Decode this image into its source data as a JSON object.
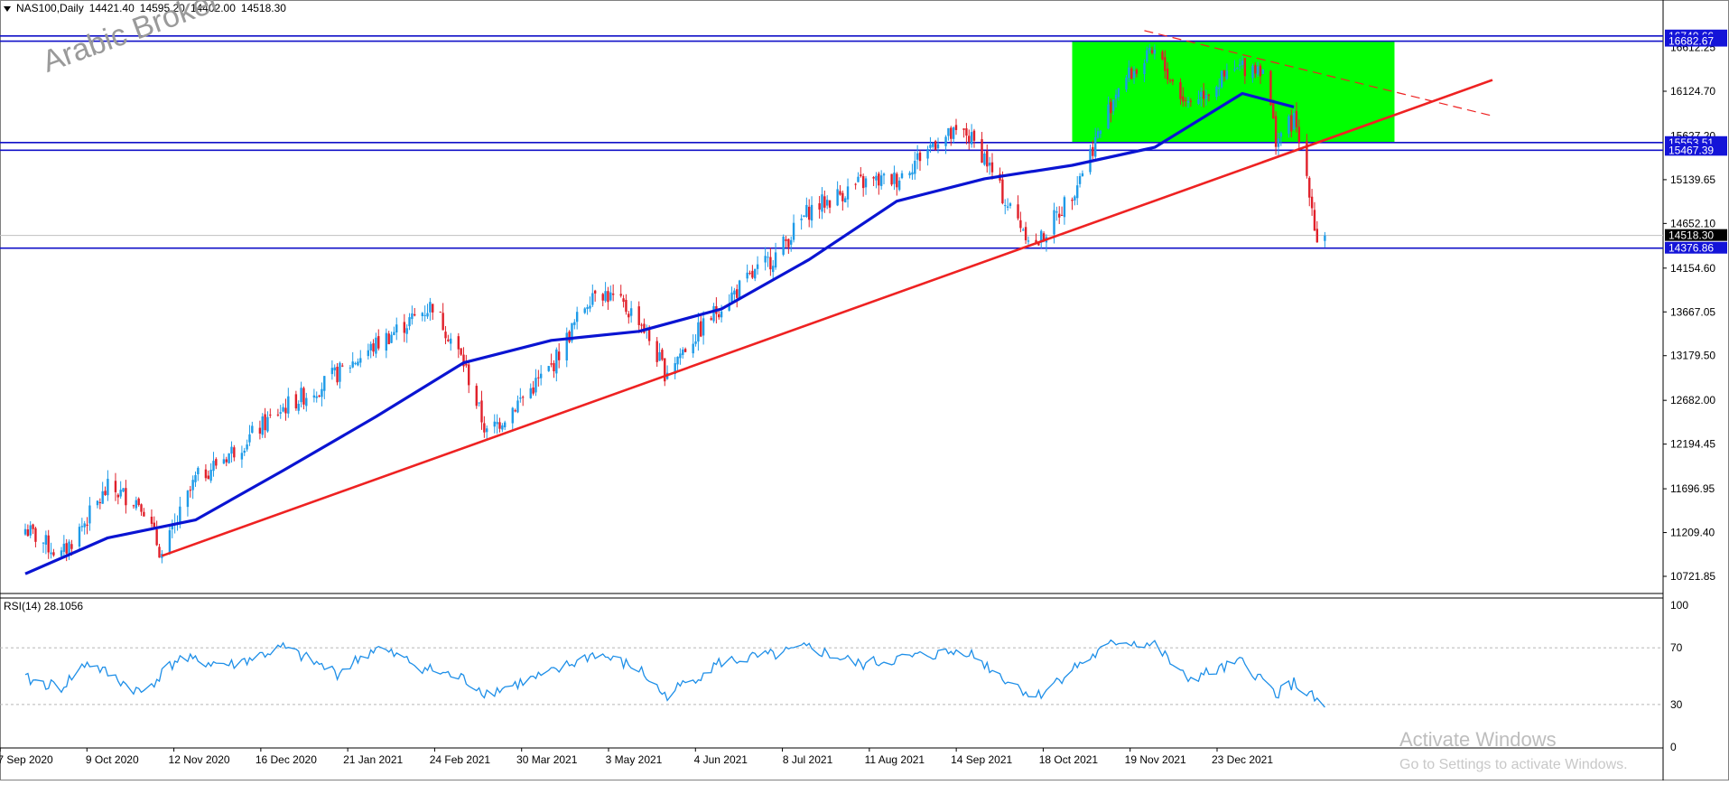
{
  "header": {
    "symbol": "NAS100,Daily",
    "open": "14421.40",
    "high": "14595.20",
    "low": "14402.00",
    "close": "14518.30"
  },
  "watermark": "Arabic Broker",
  "rsi_header": "RSI(14) 28.1056",
  "windows_notice": {
    "title": "Activate Windows",
    "subtitle": "Go to Settings to activate Windows."
  },
  "colors": {
    "bull_candle": "#1e9be8",
    "bear_candle": "#e0202a",
    "moving_average": "#0a14d2",
    "trendline": "#ee2222",
    "horizontal_levels": "#1010c8",
    "range_box": "#00ff00",
    "rsi_line": "#1e8fe8",
    "price_label_bg": "#1414d8",
    "current_price_label_bg": "#000000"
  },
  "chart_data": {
    "type": "candlestick",
    "symbol": "NAS100",
    "timeframe": "Daily",
    "price_axis_ticks": [
      "16124.70",
      "15139.65",
      "14652.10",
      "14154.60",
      "13667.05",
      "13179.50",
      "12682.00",
      "12194.45",
      "11696.95",
      "11209.40",
      "10721.85"
    ],
    "price_axis_partial_ticks": [
      "16612.25",
      "15627.20"
    ],
    "x_tick_labels": [
      "7 Sep 2020",
      "9 Oct 2020",
      "12 Nov 2020",
      "16 Dec 2020",
      "21 Jan 2021",
      "24 Feb 2021",
      "30 Mar 2021",
      "3 May 2021",
      "4 Jun 2021",
      "8 Jul 2021",
      "11 Aug 2021",
      "14 Sep 2021",
      "18 Oct 2021",
      "19 Nov 2021",
      "23 Dec 2021"
    ],
    "ylim": [
      10500,
      16800
    ],
    "close_path": [
      [
        "2020-09-07",
        11250
      ],
      [
        "2020-09-21",
        10950
      ],
      [
        "2020-10-09",
        11700
      ],
      [
        "2020-10-22",
        11550
      ],
      [
        "2020-10-30",
        10950
      ],
      [
        "2020-11-12",
        11800
      ],
      [
        "2020-11-30",
        12200
      ],
      [
        "2020-12-16",
        12600
      ],
      [
        "2020-12-31",
        12850
      ],
      [
        "2021-01-21",
        13300
      ],
      [
        "2021-02-12",
        13750
      ],
      [
        "2021-02-24",
        13100
      ],
      [
        "2021-03-05",
        12300
      ],
      [
        "2021-03-30",
        13050
      ],
      [
        "2021-04-16",
        13950
      ],
      [
        "2021-05-03",
        13600
      ],
      [
        "2021-05-13",
        13000
      ],
      [
        "2021-06-04",
        13750
      ],
      [
        "2021-06-25",
        14300
      ],
      [
        "2021-07-08",
        14800
      ],
      [
        "2021-07-28",
        15100
      ],
      [
        "2021-08-11",
        15150
      ],
      [
        "2021-08-27",
        15600
      ],
      [
        "2021-09-07",
        15650
      ],
      [
        "2021-09-14",
        15400
      ],
      [
        "2021-09-22",
        14900
      ],
      [
        "2021-10-04",
        14400
      ],
      [
        "2021-10-18",
        15000
      ],
      [
        "2021-10-29",
        15700
      ],
      [
        "2021-11-05",
        16200
      ],
      [
        "2021-11-19",
        16550
      ],
      [
        "2021-12-01",
        16000
      ],
      [
        "2021-12-10",
        16150
      ],
      [
        "2021-12-23",
        16400
      ],
      [
        "2021-12-31",
        16400
      ],
      [
        "2022-01-05",
        15600
      ],
      [
        "2022-01-12",
        15800
      ],
      [
        "2022-01-18",
        15050
      ],
      [
        "2022-01-21",
        14450
      ],
      [
        "2022-01-24",
        14518.3
      ]
    ],
    "horizontal_levels": [
      16740.66,
      16682.67,
      15553.51,
      15467.39,
      14376.86
    ],
    "current_price": 14518.3,
    "range_box": {
      "x_from": "2021-10-18",
      "x_to": "2022-02-20",
      "y_from": 15553.51,
      "y_to": 16682.67
    },
    "trendlines": [
      {
        "style": "solid",
        "from": [
          "2020-10-30",
          10950
        ],
        "to": [
          "2022-03-30",
          16250
        ]
      },
      {
        "style": "dashed",
        "from": [
          "2021-11-15",
          16800
        ],
        "to": [
          "2022-03-30",
          15850
        ]
      }
    ],
    "moving_average": {
      "name": "",
      "line": [
        [
          "2020-09-07",
          10750
        ],
        [
          "2020-10-09",
          11150
        ],
        [
          "2020-11-12",
          11350
        ],
        [
          "2020-12-16",
          11900
        ],
        [
          "2021-01-21",
          12500
        ],
        [
          "2021-02-24",
          13100
        ],
        [
          "2021-03-30",
          13350
        ],
        [
          "2021-05-03",
          13450
        ],
        [
          "2021-06-04",
          13700
        ],
        [
          "2021-07-08",
          14250
        ],
        [
          "2021-08-11",
          14900
        ],
        [
          "2021-09-14",
          15150
        ],
        [
          "2021-10-18",
          15300
        ],
        [
          "2021-11-19",
          15500
        ],
        [
          "2021-12-23",
          16100
        ],
        [
          "2022-01-12",
          15950
        ]
      ]
    },
    "rsi": {
      "period": 14,
      "value": 28.1056,
      "axis_ticks": [
        "100",
        "70",
        "30",
        "0"
      ],
      "levels": [
        70,
        30
      ],
      "path": [
        [
          "2020-09-07",
          48
        ],
        [
          "2020-09-21",
          42
        ],
        [
          "2020-10-01",
          60
        ],
        [
          "2020-10-22",
          38
        ],
        [
          "2020-11-05",
          62
        ],
        [
          "2020-11-26",
          58
        ],
        [
          "2020-12-16",
          70
        ],
        [
          "2021-01-06",
          52
        ],
        [
          "2021-01-21",
          70
        ],
        [
          "2021-02-10",
          55
        ],
        [
          "2021-02-24",
          48
        ],
        [
          "2021-03-05",
          38
        ],
        [
          "2021-03-30",
          52
        ],
        [
          "2021-04-16",
          66
        ],
        [
          "2021-05-03",
          55
        ],
        [
          "2021-05-13",
          36
        ],
        [
          "2021-06-04",
          60
        ],
        [
          "2021-06-25",
          65
        ],
        [
          "2021-07-08",
          70
        ],
        [
          "2021-07-28",
          58
        ],
        [
          "2021-08-11",
          62
        ],
        [
          "2021-09-07",
          68
        ],
        [
          "2021-09-22",
          48
        ],
        [
          "2021-10-04",
          35
        ],
        [
          "2021-10-18",
          55
        ],
        [
          "2021-11-05",
          75
        ],
        [
          "2021-11-19",
          72
        ],
        [
          "2021-12-01",
          48
        ],
        [
          "2021-12-10",
          52
        ],
        [
          "2021-12-23",
          60
        ],
        [
          "2022-01-05",
          38
        ],
        [
          "2022-01-12",
          45
        ],
        [
          "2022-01-24",
          28.1056
        ]
      ]
    }
  }
}
